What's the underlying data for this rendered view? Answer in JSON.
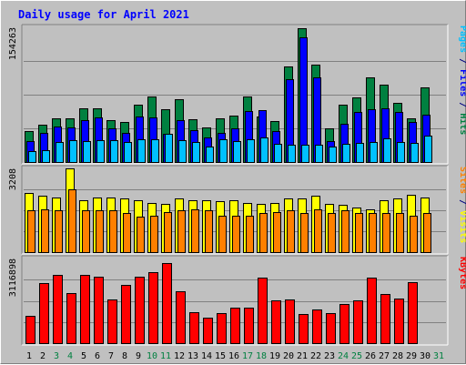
{
  "chart_data": {
    "type": "bar",
    "title": "Daily usage for April 2021",
    "categories": [
      "1",
      "2",
      "3",
      "4",
      "5",
      "6",
      "7",
      "8",
      "9",
      "10",
      "11",
      "12",
      "13",
      "14",
      "15",
      "16",
      "17",
      "18",
      "19",
      "20",
      "21",
      "22",
      "23",
      "24",
      "25",
      "26",
      "27",
      "28",
      "29",
      "30",
      "31"
    ],
    "weekend_days": [
      "3",
      "4",
      "10",
      "11",
      "17",
      "18",
      "24",
      "25",
      "31"
    ],
    "panels": [
      {
        "id": "hits-files-pages",
        "ymax_label": "154263",
        "ymax": 154263,
        "axis_title_parts": [
          {
            "text": "Pages",
            "color": "#00c0ff"
          },
          {
            "text": " / ",
            "color": "#000080"
          },
          {
            "text": "Files",
            "color": "#0000ff"
          },
          {
            "text": " / ",
            "color": "#000080"
          },
          {
            "text": "Hits",
            "color": "#008040"
          }
        ],
        "series": [
          {
            "name": "Hits",
            "color": "#008040",
            "values": [
              35000,
              43000,
              50000,
              50000,
              62000,
              62000,
              48000,
              46000,
              66000,
              75000,
              60000,
              72000,
              49000,
              40000,
              50000,
              53000,
              75000,
              52000,
              47000,
              109000,
              153000,
              112000,
              39000,
              66000,
              74000,
              97000,
              89000,
              68000,
              50000,
              85000,
              0
            ]
          },
          {
            "name": "Files",
            "color": "#0000ff",
            "values": [
              24000,
              33000,
              41000,
              40000,
              48000,
              51000,
              39000,
              33000,
              52000,
              51000,
              32000,
              48000,
              36000,
              28000,
              33000,
              39000,
              58000,
              59000,
              35000,
              95000,
              143000,
              97000,
              24000,
              44000,
              57000,
              60000,
              61000,
              57000,
              46000,
              54000,
              0
            ]
          },
          {
            "name": "Pages",
            "color": "#00c0ff",
            "values": [
              13000,
              14000,
              23000,
              25000,
              24000,
              25000,
              25000,
              23000,
              26000,
              26000,
              32000,
              25000,
              23000,
              18000,
              26000,
              24000,
              26000,
              28000,
              21000,
              20000,
              20000,
              20000,
              18000,
              21000,
              22000,
              23000,
              27000,
              23000,
              22000,
              30000,
              0
            ]
          }
        ]
      },
      {
        "id": "visits-sites",
        "ymax_label": "3208",
        "ymax": 3208,
        "axis_title_parts": [
          {
            "text": "Sites",
            "color": "#ff8000"
          },
          {
            "text": " / ",
            "color": "#000080"
          },
          {
            "text": "Visits",
            "color": "#ffff00"
          }
        ],
        "series": [
          {
            "name": "Visits",
            "color": "#ffff00",
            "values": [
              2250,
              2150,
              2100,
              3208,
              2000,
              2100,
              2100,
              2050,
              2000,
              1900,
              1850,
              2050,
              2000,
              2000,
              1950,
              2000,
              1900,
              1850,
              1900,
              2050,
              2050,
              2150,
              1850,
              1800,
              1700,
              1650,
              2000,
              2050,
              2200,
              2100,
              0
            ]
          },
          {
            "name": "Sites",
            "color": "#ff8000",
            "values": [
              1600,
              1650,
              1600,
              2400,
              1600,
              1600,
              1600,
              1500,
              1350,
              1400,
              1550,
              1600,
              1650,
              1600,
              1400,
              1400,
              1400,
              1500,
              1550,
              1600,
              1500,
              1650,
              1500,
              1600,
              1500,
              1500,
              1500,
              1500,
              1400,
              1500,
              0
            ]
          }
        ]
      },
      {
        "id": "kbytes",
        "ymax_label": "3116898",
        "ymax": 3116898,
        "axis_title_parts": [
          {
            "text": "KBytes",
            "color": "#ff0000"
          }
        ],
        "series": [
          {
            "name": "KBytes",
            "color": "#ff0000",
            "values": [
              1000000,
              2220000,
              2500000,
              1850000,
              2520000,
              2450000,
              1600000,
              2140000,
              2450000,
              2600000,
              2950000,
              1920000,
              1150000,
              950000,
              1100000,
              1320000,
              1320000,
              2420000,
              1580000,
              1620000,
              1060000,
              1250000,
              1120000,
              1440000,
              1560000,
              2420000,
              1820000,
              1640000,
              2260000,
              0,
              0
            ]
          }
        ]
      }
    ]
  },
  "colors": {
    "title": "#0000ff",
    "weekday_label": "#000000",
    "weekend_label": "#008040",
    "plot_bg": "#c0c0c0",
    "gridline": "#808080"
  }
}
